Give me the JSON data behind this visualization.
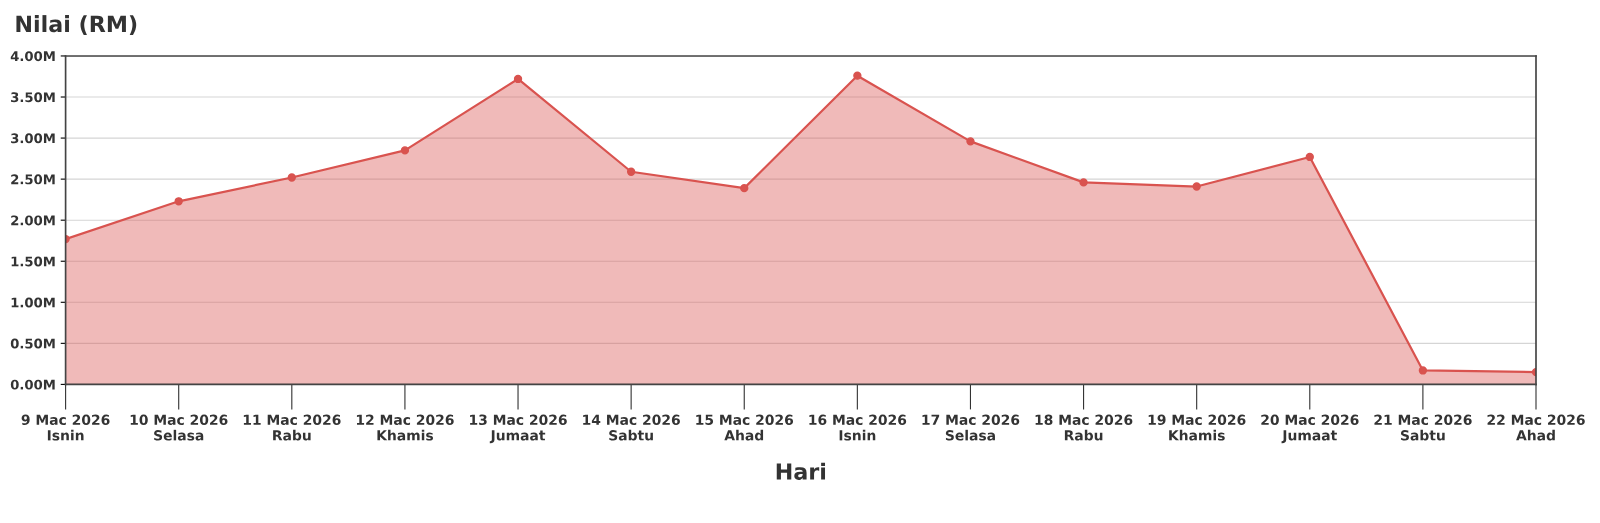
{
  "chart_data": {
    "type": "area",
    "ylabel": "Nilai (RM)",
    "xlabel": "Hari",
    "categories": [
      "9 Mac 2026\nIsnin",
      "10 Mac 2026\nSelasa",
      "11 Mac 2026\nRabu",
      "12 Mac 2026\nKhamis",
      "13 Mac 2026\nJumaat",
      "14 Mac 2026\nSabtu",
      "15 Mac 2026\nAhad",
      "16 Mac 2026\nIsnin",
      "17 Mac 2026\nSelasa",
      "18 Mac 2026\nRabu",
      "19 Mac 2026\nKhamis",
      "20 Mac 2026\nJumaat",
      "21 Mac 2026\nSabtu",
      "22 Mac 2026\nAhad"
    ],
    "series": [
      {
        "color": "#d9534f",
        "values": [
          1.77,
          2.23,
          2.52,
          2.85,
          3.72,
          2.59,
          2.39,
          3.76,
          2.96,
          2.46,
          2.41,
          2.77,
          0.17,
          0.15
        ]
      }
    ],
    "ylim": [
      0,
      4
    ],
    "yticks": [
      {
        "value": 0,
        "label": "0.00M"
      },
      {
        "value": 0.5,
        "label": "0.50M"
      },
      {
        "value": 1,
        "label": "1.00M"
      },
      {
        "value": 1.5,
        "label": "1.50M"
      },
      {
        "value": 2,
        "label": "2.00M"
      },
      {
        "value": 2.5,
        "label": "2.50M"
      },
      {
        "value": 3,
        "label": "3.00M"
      },
      {
        "value": 3.5,
        "label": "3.50M"
      },
      {
        "value": 4,
        "label": "4.00M"
      }
    ],
    "grid": "y",
    "marker": "circle",
    "line_style": "solid"
  }
}
